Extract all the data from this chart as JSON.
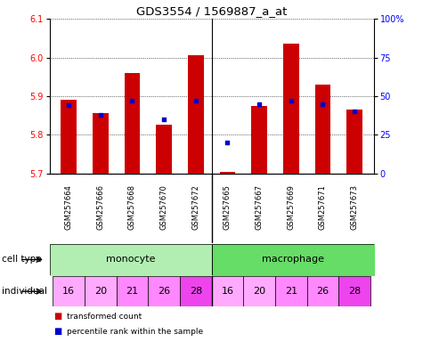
{
  "title": "GDS3554 / 1569887_a_at",
  "samples": [
    "GSM257664",
    "GSM257666",
    "GSM257668",
    "GSM257670",
    "GSM257672",
    "GSM257665",
    "GSM257667",
    "GSM257669",
    "GSM257671",
    "GSM257673"
  ],
  "transformed_count": [
    5.89,
    5.855,
    5.96,
    5.825,
    6.005,
    5.705,
    5.875,
    6.035,
    5.93,
    5.865
  ],
  "percentile_rank": [
    44,
    38,
    47,
    35,
    47,
    20,
    45,
    47,
    45,
    40
  ],
  "ylim_left": [
    5.7,
    6.1
  ],
  "ylim_right": [
    0,
    100
  ],
  "yticks_left": [
    5.7,
    5.8,
    5.9,
    6.0,
    6.1
  ],
  "yticks_right": [
    0,
    25,
    50,
    75,
    100
  ],
  "ytick_labels_right": [
    "0",
    "25",
    "50",
    "75",
    "100%"
  ],
  "bar_bottom": 5.7,
  "separator_index": 5,
  "cell_types": [
    "monocyte",
    "macrophage"
  ],
  "cell_type_color_mono": "#B2EEB2",
  "cell_type_color_macro": "#66DD66",
  "individuals": [
    16,
    20,
    21,
    26,
    28,
    16,
    20,
    21,
    26,
    28
  ],
  "indiv_colors": [
    "#FFAAFF",
    "#FFAAFF",
    "#FF88FF",
    "#FF88FF",
    "#EE44EE",
    "#FFAAFF",
    "#FFAAFF",
    "#FF88FF",
    "#FF88FF",
    "#EE44EE"
  ],
  "bar_color": "#CC0000",
  "blue_marker_color": "#0000CC",
  "samp_bg_color": "#C8C8C8",
  "samp_sep_color": "#FFFFFF",
  "bg_color": "#FFFFFF",
  "legend_red_label": "transformed count",
  "legend_blue_label": "percentile rank within the sample",
  "cell_type_label": "cell type",
  "individual_label": "individual"
}
